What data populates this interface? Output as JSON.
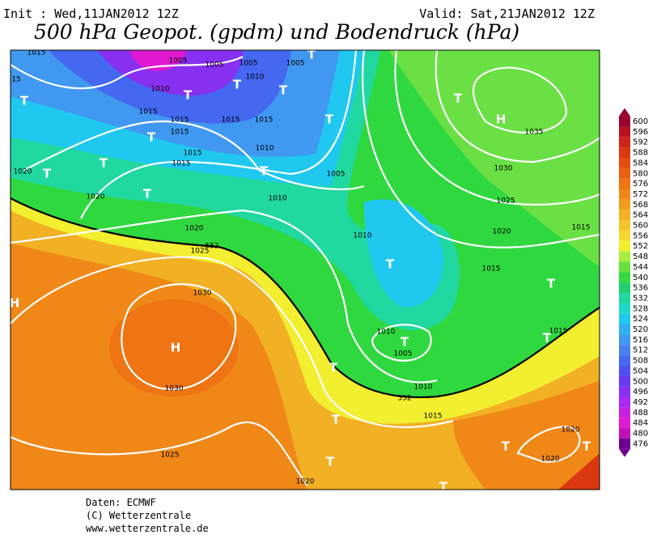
{
  "header": {
    "init": "Init : Wed,11JAN2012 12Z",
    "valid": "Valid: Sat,21JAN2012 12Z",
    "title": "500 hPa Geopot. (gpdm) und Bodendruck (hPa)"
  },
  "map": {
    "labels": [
      "1015",
      "1005",
      "1005",
      "1005",
      "1005",
      "T",
      "15",
      "1010",
      "1010",
      "T",
      "T",
      "T",
      "T",
      "1015",
      "1015",
      "1015",
      "1015",
      "1015",
      "T",
      "T",
      "H",
      "1035",
      "T",
      "1010",
      "1015",
      "1015",
      "T",
      "1020",
      "T",
      "T",
      "1005",
      "1030",
      "T",
      "1020",
      "1010",
      "1025",
      "1020",
      "1010",
      "1020",
      "1015",
      "1025",
      "552",
      "T",
      "1015",
      "T",
      "1030",
      "H",
      "H",
      "1010",
      "T",
      "1005",
      "1015",
      "T",
      "1030",
      "T",
      "1010",
      "552",
      "1015",
      "T",
      "1020",
      "T",
      "T",
      "1025",
      "1020",
      "T",
      "1020",
      "T"
    ]
  },
  "colorbar": {
    "levels": [
      600,
      596,
      592,
      588,
      584,
      580,
      576,
      572,
      568,
      564,
      560,
      556,
      552,
      548,
      544,
      540,
      536,
      532,
      528,
      524,
      520,
      516,
      512,
      508,
      504,
      500,
      496,
      492,
      488,
      484,
      480,
      476
    ],
    "colors": [
      "#9a0030",
      "#b81020",
      "#cc2418",
      "#dc3810",
      "#e44c10",
      "#ea6010",
      "#ee7414",
      "#f08818",
      "#f09c1c",
      "#f2b024",
      "#f4c42c",
      "#f6d830",
      "#f2ee30",
      "#a8f040",
      "#68e040",
      "#38d840",
      "#20d070",
      "#20d8a0",
      "#20d8c8",
      "#20c8f0",
      "#30b0f0",
      "#4098f0",
      "#4880f0",
      "#4468f0",
      "#5050f0",
      "#6838f0",
      "#8830f0",
      "#a828f0",
      "#c820e0",
      "#e018d0",
      "#c010b8",
      "#700090"
    ]
  },
  "footer": {
    "data": "Daten: ECMWF",
    "copyright": "(C) Wetterzentrale",
    "url": "www.wetterzentrale.de"
  }
}
